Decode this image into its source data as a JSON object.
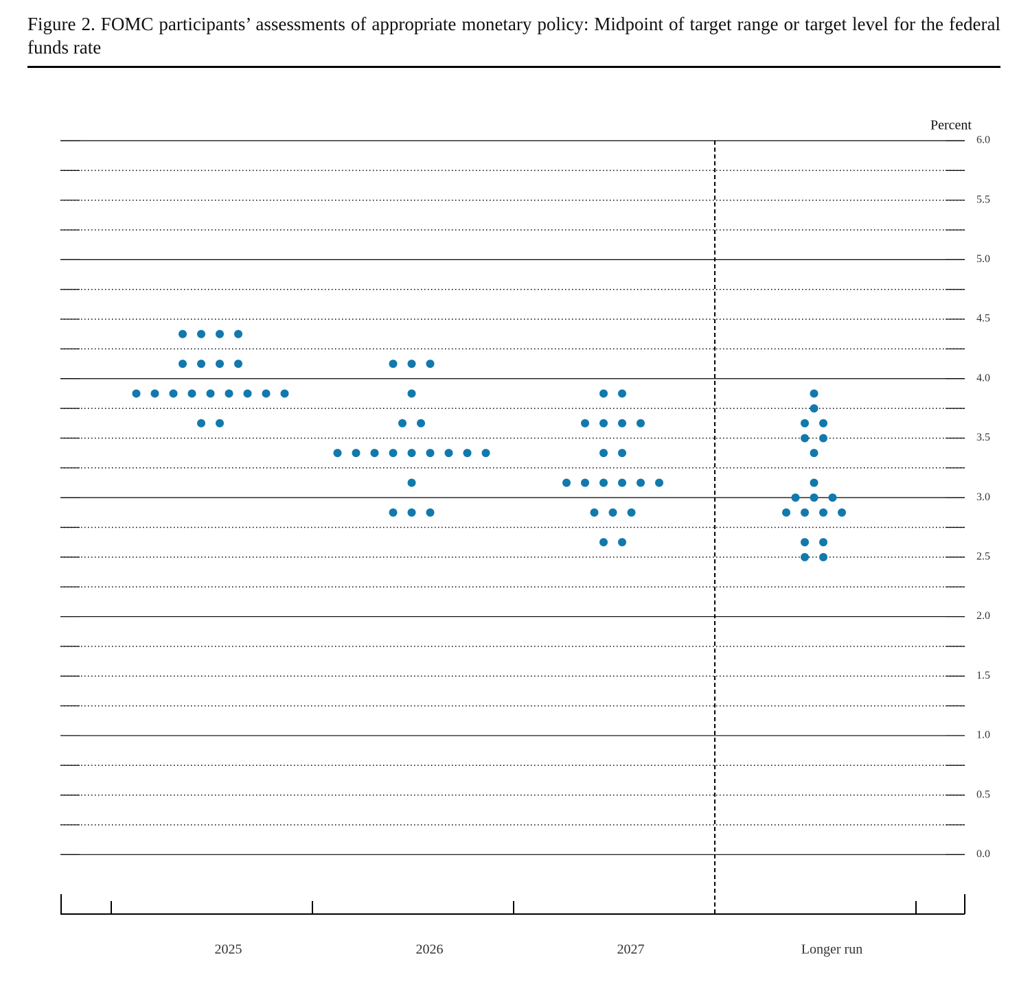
{
  "chart_data": {
    "type": "dot",
    "title": "Figure 2. FOMC participants’ assessments of appropriate monetary policy: Midpoint of target range or target level for the federal funds rate",
    "y_label": "Percent",
    "categories": [
      "2025",
      "2026",
      "2027",
      "Longer run"
    ],
    "color": "#1279ad",
    "values": [
      [
        4.375,
        4.375,
        4.375,
        4.375,
        4.125,
        4.125,
        4.125,
        4.125,
        3.875,
        3.875,
        3.875,
        3.875,
        3.875,
        3.875,
        3.875,
        3.875,
        3.875,
        3.625,
        3.625
      ],
      [
        4.125,
        4.125,
        4.125,
        3.875,
        3.625,
        3.625,
        3.375,
        3.375,
        3.375,
        3.375,
        3.375,
        3.375,
        3.375,
        3.375,
        3.375,
        3.125,
        2.875,
        2.875,
        2.875
      ],
      [
        3.875,
        3.875,
        3.625,
        3.625,
        3.625,
        3.625,
        3.375,
        3.375,
        3.125,
        3.125,
        3.125,
        3.125,
        3.125,
        3.125,
        2.875,
        2.875,
        2.875,
        2.625,
        2.625
      ],
      [
        3.875,
        3.75,
        3.625,
        3.625,
        3.5,
        3.5,
        3.375,
        3.125,
        3.0,
        3.0,
        3.0,
        2.875,
        2.875,
        2.875,
        2.875,
        2.625,
        2.625,
        2.5,
        2.5
      ]
    ],
    "ylim": [
      -0.5,
      6
    ],
    "yticks": [
      {
        "value": 0,
        "label": "0.0"
      },
      {
        "value": 0.5,
        "label": "0.5"
      },
      {
        "value": 1,
        "label": "1.0"
      },
      {
        "value": 1.5,
        "label": "1.5"
      },
      {
        "value": 2,
        "label": "2.0"
      },
      {
        "value": 2.5,
        "label": "2.5"
      },
      {
        "value": 3,
        "label": "3.0"
      },
      {
        "value": 3.5,
        "label": "3.5"
      },
      {
        "value": 4,
        "label": "4.0"
      },
      {
        "value": 4.5,
        "label": "4.5"
      },
      {
        "value": 5,
        "label": "5.0"
      },
      {
        "value": 5.5,
        "label": "5.5"
      },
      {
        "value": 6,
        "label": "6.0"
      }
    ],
    "yticks_minor": [
      0.25,
      0.75,
      1.25,
      1.75,
      2.25,
      2.75,
      3.25,
      3.75,
      4.25,
      4.75,
      5.25,
      5.75
    ],
    "grid": true
  }
}
